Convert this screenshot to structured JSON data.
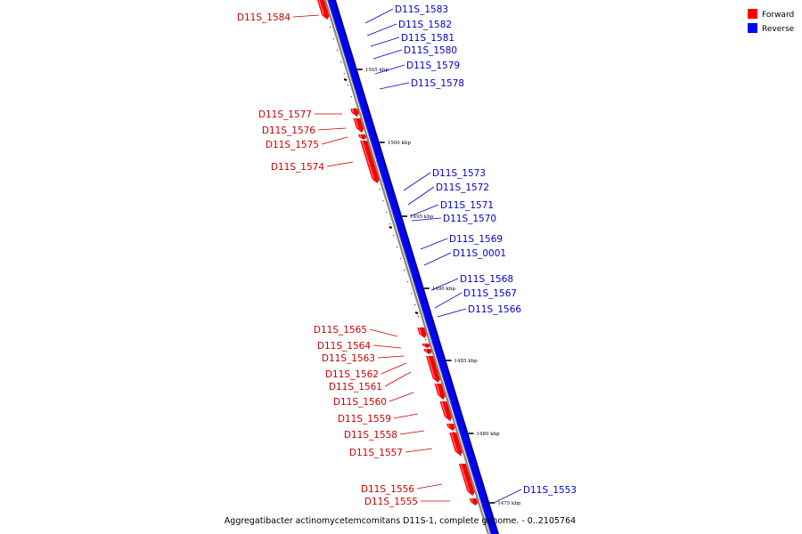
{
  "caption": "Aggregatibacter actinomycetemcomitans D11S-1, complete genome. - 0..2105764",
  "legend": [
    {
      "label": "Forward",
      "color": "#ff0000"
    },
    {
      "label": "Reverse",
      "color": "#0000ff"
    }
  ],
  "colors": {
    "forward": "#ff0000",
    "forward_shade": "#b00000",
    "reverse": "#0000ff",
    "reverse_shade": "#000090",
    "forward_label": "#cc0000",
    "reverse_label": "#0000cc",
    "backbone": "#888888"
  },
  "scale_ticks": [
    "1505 kbp",
    "1500 kbp",
    "1495 kbp",
    "1490 kbp",
    "1485 kbp",
    "1480 kbp",
    "1475 kbp"
  ],
  "reverse_genes": [
    "D11S_1583",
    "D11S_1582",
    "D11S_1581",
    "D11S_1580",
    "D11S_1579",
    "D11S_1578",
    "D11S_1573",
    "D11S_1572",
    "D11S_1571",
    "D11S_1570",
    "D11S_1569",
    "D11S_0001",
    "D11S_1568",
    "D11S_1567",
    "D11S_1566",
    "D11S_1553"
  ],
  "forward_genes": [
    "D11S_1584",
    "D11S_1577",
    "D11S_1576",
    "D11S_1575",
    "D11S_1574",
    "D11S_1565",
    "D11S_1564",
    "D11S_1563",
    "D11S_1562",
    "D11S_1561",
    "D11S_1560",
    "D11S_1559",
    "D11S_1558",
    "D11S_1557",
    "D11S_1556",
    "D11S_1555"
  ]
}
